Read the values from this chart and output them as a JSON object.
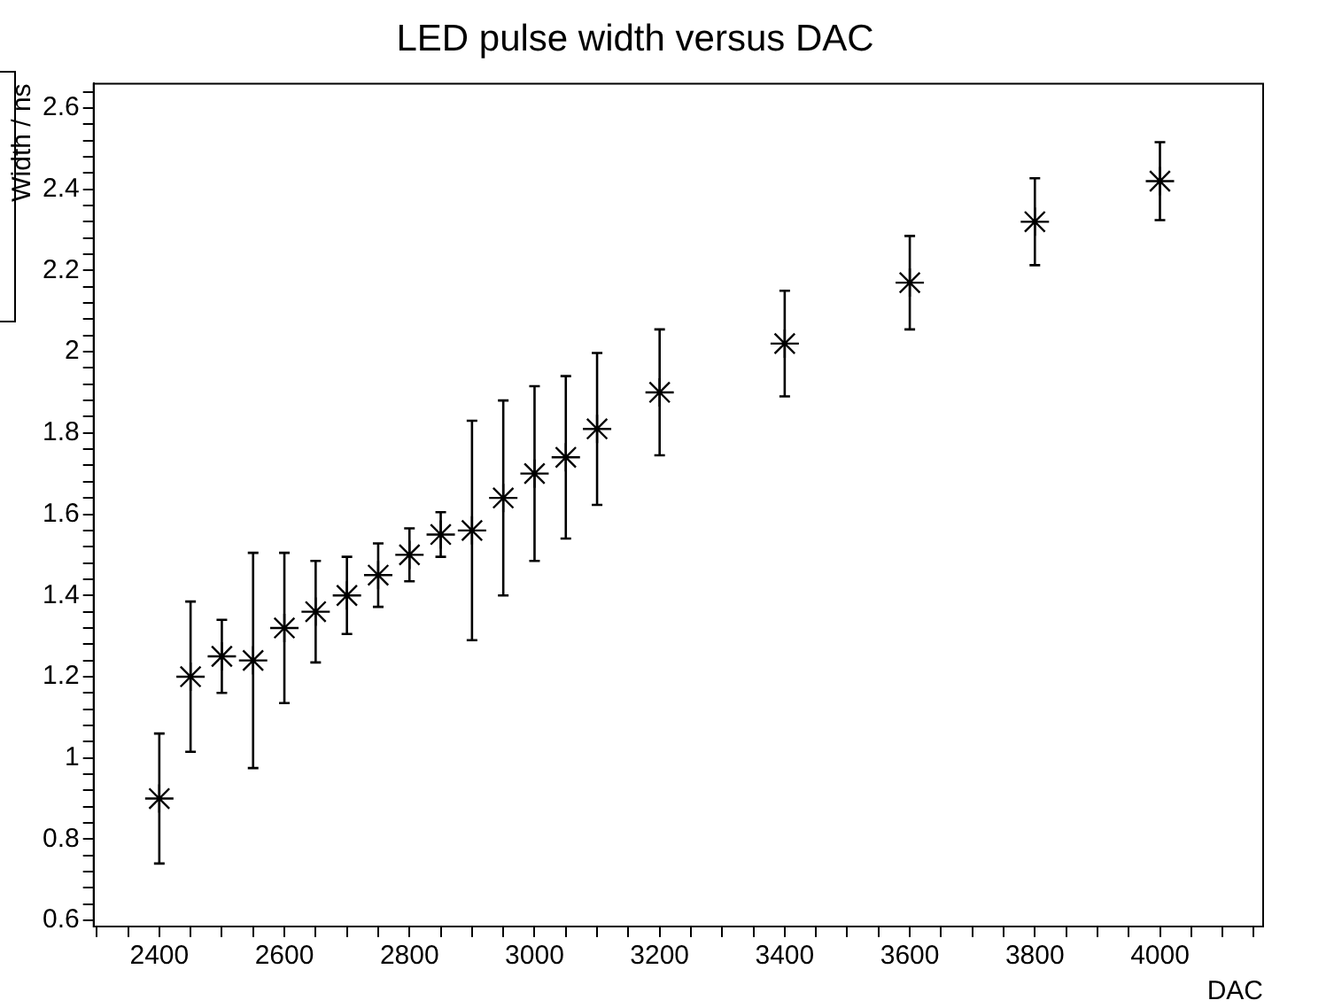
{
  "chart_data": {
    "type": "scatter",
    "title": "LED pulse width versus DAC",
    "xlabel": "DAC",
    "ylabel": "Width / ns",
    "x": [
      2400,
      2450,
      2500,
      2550,
      2600,
      2650,
      2700,
      2750,
      2800,
      2850,
      2900,
      2950,
      3000,
      3050,
      3100,
      3200,
      3400,
      3600,
      3800,
      4000
    ],
    "values": [
      0.9,
      1.2,
      1.25,
      1.24,
      1.32,
      1.36,
      1.4,
      1.45,
      1.5,
      1.55,
      1.56,
      1.64,
      1.7,
      1.74,
      1.81,
      1.9,
      2.02,
      2.17,
      2.32,
      2.42
    ],
    "errors": [
      0.16,
      0.185,
      0.09,
      0.265,
      0.185,
      0.125,
      0.095,
      0.078,
      0.065,
      0.055,
      0.27,
      0.24,
      0.215,
      0.2,
      0.187,
      0.155,
      0.13,
      0.115,
      0.107,
      0.096
    ],
    "color": "#000000",
    "marker": "cross",
    "grid": false,
    "legend": false,
    "xlim": [
      2295,
      4165
    ],
    "xticks": [
      {
        "value": 2300,
        "label": null
      },
      {
        "value": 2350,
        "label": null
      },
      2400,
      {
        "value": 2450,
        "label": null
      },
      {
        "value": 2500,
        "label": null
      },
      {
        "value": 2550,
        "label": null
      },
      2600,
      {
        "value": 2650,
        "label": null
      },
      {
        "value": 2700,
        "label": null
      },
      {
        "value": 2750,
        "label": null
      },
      2800,
      {
        "value": 2850,
        "label": null
      },
      {
        "value": 2900,
        "label": null
      },
      {
        "value": 2950,
        "label": null
      },
      3000,
      {
        "value": 3050,
        "label": null
      },
      {
        "value": 3100,
        "label": null
      },
      {
        "value": 3150,
        "label": null
      },
      3200,
      {
        "value": 3250,
        "label": null
      },
      {
        "value": 3300,
        "label": null
      },
      {
        "value": 3350,
        "label": null
      },
      3400,
      {
        "value": 3450,
        "label": null
      },
      {
        "value": 3500,
        "label": null
      },
      {
        "value": 3550,
        "label": null
      },
      3600,
      {
        "value": 3650,
        "label": null
      },
      {
        "value": 3700,
        "label": null
      },
      {
        "value": 3750,
        "label": null
      },
      3800,
      {
        "value": 3850,
        "label": null
      },
      {
        "value": 3900,
        "label": null
      },
      {
        "value": 3950,
        "label": null
      },
      4000,
      {
        "value": 4050,
        "label": null
      },
      {
        "value": 4100,
        "label": null
      },
      {
        "value": 4150,
        "label": null
      }
    ],
    "ylim": [
      0.585,
      2.66
    ],
    "yticks": [
      0.6,
      {
        "value": 0.64,
        "label": null
      },
      {
        "value": 0.68,
        "label": null
      },
      {
        "value": 0.72,
        "label": null
      },
      {
        "value": 0.76,
        "label": null
      },
      0.8,
      {
        "value": 0.84,
        "label": null
      },
      {
        "value": 0.88,
        "label": null
      },
      {
        "value": 0.92,
        "label": null
      },
      {
        "value": 0.96,
        "label": null
      },
      1,
      {
        "value": 1.04,
        "label": null
      },
      {
        "value": 1.08,
        "label": null
      },
      {
        "value": 1.12,
        "label": null
      },
      {
        "value": 1.16,
        "label": null
      },
      1.2,
      {
        "value": 1.24,
        "label": null
      },
      {
        "value": 1.28,
        "label": null
      },
      {
        "value": 1.32,
        "label": null
      },
      {
        "value": 1.36,
        "label": null
      },
      1.4,
      {
        "value": 1.44,
        "label": null
      },
      {
        "value": 1.48,
        "label": null
      },
      {
        "value": 1.52,
        "label": null
      },
      {
        "value": 1.56,
        "label": null
      },
      1.6,
      {
        "value": 1.64,
        "label": null
      },
      {
        "value": 1.68,
        "label": null
      },
      {
        "value": 1.72,
        "label": null
      },
      {
        "value": 1.76,
        "label": null
      },
      1.8,
      {
        "value": 1.84,
        "label": null
      },
      {
        "value": 1.88,
        "label": null
      },
      {
        "value": 1.92,
        "label": null
      },
      {
        "value": 1.96,
        "label": null
      },
      2,
      {
        "value": 2.04,
        "label": null
      },
      {
        "value": 2.08,
        "label": null
      },
      {
        "value": 2.12,
        "label": null
      },
      {
        "value": 2.16,
        "label": null
      },
      2.2,
      {
        "value": 2.24,
        "label": null
      },
      {
        "value": 2.28,
        "label": null
      },
      {
        "value": 2.32,
        "label": null
      },
      {
        "value": 2.36,
        "label": null
      },
      2.4,
      {
        "value": 2.44,
        "label": null
      },
      {
        "value": 2.48,
        "label": null
      },
      {
        "value": 2.52,
        "label": null
      },
      {
        "value": 2.56,
        "label": null
      },
      2.6,
      {
        "value": 2.64,
        "label": null
      }
    ]
  }
}
